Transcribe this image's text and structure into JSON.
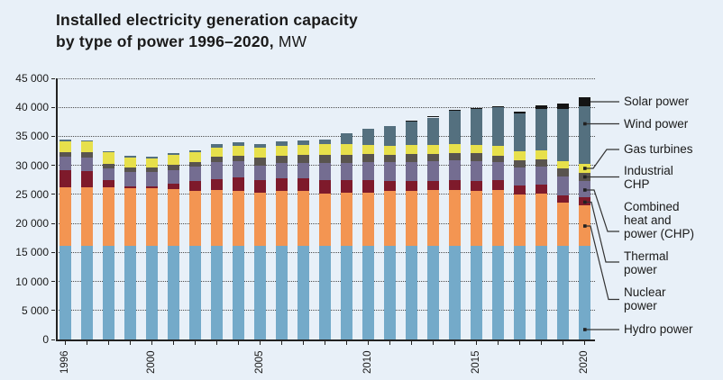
{
  "title": {
    "line1": "Installed electricity generation capacity",
    "line2_bold": "by type of power 1996–2020,",
    "line2_unit": " MW"
  },
  "colors": {
    "background": "#e8f0f8",
    "axis": "#222222",
    "gridline": "#4d4d4d",
    "text": "#1a1a1a",
    "leader_line": "#333333"
  },
  "chart_data": {
    "type": "bar",
    "stacked": true,
    "unit": "MW",
    "title": "Installed electricity generation capacity by type of power 1996–2020, MW",
    "xlabel": "",
    "ylabel": "",
    "ylim": [
      0,
      45000
    ],
    "grid": "horizontal dotted lines every 5000",
    "legend_position": "right side, labels tied by leader lines to the 2020 bar segments",
    "x": [
      1996,
      1997,
      1998,
      1999,
      2000,
      2001,
      2002,
      2003,
      2004,
      2005,
      2006,
      2007,
      2008,
      2009,
      2010,
      2011,
      2012,
      2013,
      2014,
      2015,
      2016,
      2017,
      2018,
      2019,
      2020
    ],
    "x_tick_labels": [
      "1996",
      "2000",
      "2005",
      "2010",
      "2015",
      "2020"
    ],
    "y_ticks": [
      {
        "value": 0,
        "label": "0"
      },
      {
        "value": 5000,
        "label": "5 000"
      },
      {
        "value": 10000,
        "label": "10 000"
      },
      {
        "value": 15000,
        "label": "15 000"
      },
      {
        "value": 20000,
        "label": "20 000"
      },
      {
        "value": 25000,
        "label": "25 000"
      },
      {
        "value": 30000,
        "label": "30 000"
      },
      {
        "value": 35000,
        "label": "35 000"
      },
      {
        "value": 40000,
        "label": "40 000"
      },
      {
        "value": 45000,
        "label": "45 000"
      }
    ],
    "series": [
      {
        "name": "Hydro power",
        "color": "#74aac9",
        "values": [
          16200,
          16200,
          16200,
          16200,
          16200,
          16200,
          16200,
          16200,
          16200,
          16200,
          16200,
          16200,
          16200,
          16200,
          16200,
          16200,
          16200,
          16200,
          16200,
          16200,
          16200,
          16200,
          16200,
          16200,
          16200
        ]
      },
      {
        "name": "Nuclear power",
        "color": "#f39552",
        "values": [
          10050,
          10000,
          10050,
          9850,
          9850,
          9750,
          9450,
          9550,
          9400,
          9150,
          9350,
          9350,
          9000,
          9050,
          9100,
          9400,
          9400,
          9550,
          9500,
          9350,
          9500,
          8800,
          8900,
          7450,
          6900
        ]
      },
      {
        "name": "Thermal power",
        "color": "#7e1a2b",
        "values": [
          2850,
          2850,
          1150,
          400,
          400,
          850,
          1600,
          1900,
          2350,
          2150,
          2250,
          2250,
          2200,
          2200,
          2200,
          1700,
          1700,
          1600,
          1800,
          1700,
          1700,
          1550,
          1550,
          1150,
          1400
        ]
      },
      {
        "name": "Combined heat and power (CHP)",
        "color": "#746d91",
        "values": [
          2350,
          2300,
          2100,
          2350,
          2350,
          2300,
          2550,
          2850,
          2700,
          2500,
          2550,
          2600,
          3000,
          3000,
          3000,
          3200,
          3250,
          3300,
          3350,
          3400,
          3100,
          3100,
          3150,
          3250,
          2850
        ]
      },
      {
        "name": "Industrial CHP",
        "color": "#59544f",
        "values": [
          800,
          850,
          800,
          900,
          900,
          950,
          800,
          1050,
          1050,
          1300,
          1350,
          1400,
          1400,
          1400,
          1400,
          1350,
          1350,
          1300,
          1300,
          1400,
          1200,
          1300,
          1300,
          1450,
          1300
        ]
      },
      {
        "name": "Gas turbines",
        "color": "#e7e04b",
        "values": [
          1950,
          1900,
          1950,
          1650,
          1550,
          1800,
          1600,
          1550,
          1700,
          1700,
          1650,
          1650,
          1800,
          1750,
          1650,
          1500,
          1550,
          1550,
          1550,
          1400,
          1650,
          1550,
          1550,
          1250,
          1650
        ]
      },
      {
        "name": "Wind power",
        "color": "#54707f",
        "values": [
          250,
          250,
          250,
          250,
          250,
          300,
          350,
          600,
          650,
          600,
          800,
          900,
          900,
          1900,
          2700,
          3500,
          4150,
          4750,
          5650,
          6200,
          6650,
          6400,
          7000,
          9000,
          9900
        ]
      },
      {
        "name": "Solar power",
        "color": "#141414",
        "values": [
          0,
          0,
          0,
          0,
          0,
          0,
          0,
          0,
          0,
          0,
          0,
          0,
          0,
          0,
          0,
          0,
          100,
          200,
          200,
          200,
          200,
          350,
          650,
          900,
          1550
        ]
      }
    ]
  },
  "legend": {
    "items": [
      {
        "label": "Solar power"
      },
      {
        "label": "Wind power"
      },
      {
        "label": "Gas turbines"
      },
      {
        "label": "Industrial CHP"
      },
      {
        "label": "Combined heat and power (CHP)"
      },
      {
        "label": "Thermal power"
      },
      {
        "label": "Nuclear power"
      },
      {
        "label": "Hydro power"
      }
    ]
  }
}
